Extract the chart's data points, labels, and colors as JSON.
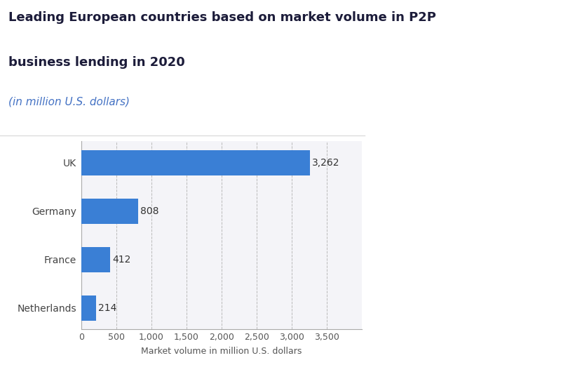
{
  "title_line1": "Leading European countries based on market volume in P2P",
  "title_line2": "business lending in 2020",
  "subtitle": "(in million U.S. dollars)",
  "categories": [
    "Netherlands",
    "France",
    "Germany",
    "UK"
  ],
  "values": [
    214,
    412,
    808,
    3262
  ],
  "bar_color": "#3a7fd5",
  "xlabel": "Market volume in million U.S. dollars",
  "xlim": [
    0,
    4000
  ],
  "xticks": [
    0,
    500,
    1000,
    1500,
    2000,
    2500,
    3000,
    3500
  ],
  "xtick_labels": [
    "0",
    "500",
    "1,000",
    "1,500",
    "2,000",
    "2,500",
    "3,000",
    "3,500"
  ],
  "value_labels": [
    "214",
    "412",
    "808",
    "3,262"
  ],
  "title_color": "#1c1c3a",
  "subtitle_color": "#4472c4",
  "bg_color": "#ffffff",
  "plot_bg_color": "#f4f4f8",
  "grid_color": "#bbbbbb",
  "label_fontsize": 10,
  "title_fontsize": 13,
  "subtitle_fontsize": 11,
  "xlabel_fontsize": 9,
  "value_fontsize": 10,
  "tick_fontsize": 9
}
